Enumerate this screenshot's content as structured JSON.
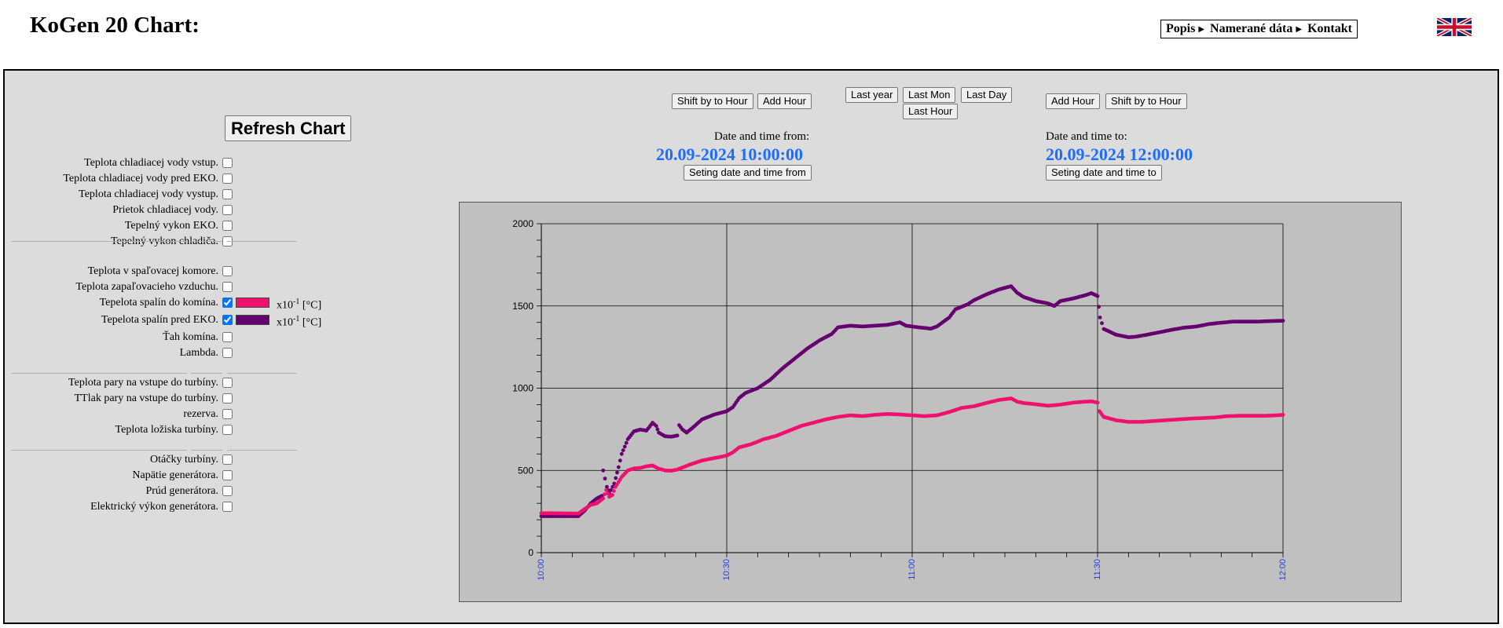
{
  "header": {
    "title": "KoGen 20 Chart:",
    "nav": [
      {
        "label": "Popis"
      },
      {
        "label": "Namerané dáta"
      },
      {
        "label": "Kontakt"
      }
    ],
    "language_flag": "uk-flag-icon"
  },
  "controls": {
    "refresh_label": "Refresh Chart",
    "from": {
      "shift_label": "Shift by to Hour",
      "add_label": "Add Hour",
      "caption": "Date and time from:",
      "value": "20.09-2024 10:00:00",
      "set_label": "Seting date and time from"
    },
    "to": {
      "add_label": "Add Hour",
      "shift_label": "Shift by to Hour",
      "caption": "Date and time to:",
      "value": "20.09-2024 12:00:00",
      "set_label": "Seting date and time to"
    },
    "presets": {
      "last_year": "Last year",
      "last_mon": "Last Mon",
      "last_day": "Last Day",
      "last_hour": "Last Hour"
    }
  },
  "parameters": {
    "group1": [
      {
        "label": "Teplota chladiacej vody vstup.",
        "checked": false
      },
      {
        "label": "Teplota chladiacej vody pred EKO.",
        "checked": false
      },
      {
        "label": "Teplota chladiacej vody vystup.",
        "checked": false
      },
      {
        "label": "Prietok chladiacej vody.",
        "checked": false
      },
      {
        "label": "Tepelný vykon EKO.",
        "checked": false
      },
      {
        "label": "Tepelný vykon chladiča.",
        "checked": false
      }
    ],
    "group2": [
      {
        "label": "Teplota v spaľovacej komore.",
        "checked": false
      },
      {
        "label": "Teplota zapaľovacieho vzduchu.",
        "checked": false
      },
      {
        "label": "Tepelota spalín do komína.",
        "checked": true,
        "color": "#f0106e",
        "unit_base": "x10",
        "unit_exp": "-1",
        "unit_label": "[°C]"
      },
      {
        "label": "Tepelota spalín pred EKO.",
        "checked": true,
        "color": "#65006e",
        "unit_base": "x10",
        "unit_exp": "-1",
        "unit_label": "[°C]"
      },
      {
        "label": "Ťah komína.",
        "checked": false
      },
      {
        "label": "Lambda.",
        "checked": false
      }
    ],
    "group3": [
      {
        "label": "Teplota pary na vstupe do turbíny.",
        "checked": false
      },
      {
        "label": "TTlak pary na vstupe do turbíny.",
        "checked": false
      },
      {
        "label": "rezerva.",
        "checked": false
      },
      {
        "label": "Teplota ložiska turbíny.",
        "checked": false
      }
    ],
    "group4": [
      {
        "label": "Otáčky turbíny.",
        "checked": false
      },
      {
        "label": "Napätie generátora.",
        "checked": false
      },
      {
        "label": "Prúd generátora.",
        "checked": false
      },
      {
        "label": "Elektrický výkon generátora.",
        "checked": false
      }
    ]
  },
  "chart_data": {
    "type": "scatter",
    "ylim": [
      0,
      2000
    ],
    "yticks": [
      0,
      500,
      1000,
      1500,
      2000
    ],
    "xlim": [
      0,
      120
    ],
    "xticks": [
      {
        "x": 0,
        "label": "10:00"
      },
      {
        "x": 30,
        "label": "10:30"
      },
      {
        "x": 60,
        "label": "11:00"
      },
      {
        "x": 90,
        "label": "11:30"
      },
      {
        "x": 120,
        "label": "12:00"
      }
    ],
    "grid": true,
    "series": [
      {
        "color": "#65006e",
        "points": [
          [
            0,
            222
          ],
          [
            6,
            222
          ],
          [
            7,
            255
          ],
          [
            8,
            300
          ],
          [
            9,
            330
          ],
          [
            9.8,
            345
          ],
          [
            10,
            500
          ],
          [
            10.6,
            400
          ],
          [
            11,
            360
          ],
          [
            11.8,
            420
          ],
          [
            12.5,
            520
          ],
          [
            13,
            600
          ],
          [
            14,
            690
          ],
          [
            15,
            738
          ],
          [
            16,
            748
          ],
          [
            17,
            742
          ],
          [
            17.5,
            765
          ],
          [
            18,
            790
          ],
          [
            18.6,
            770
          ],
          [
            19,
            730
          ],
          [
            20,
            708
          ],
          [
            21,
            705
          ],
          [
            22,
            712
          ],
          [
            22.3,
            775
          ],
          [
            22.8,
            750
          ],
          [
            23.5,
            730
          ],
          [
            24.5,
            760
          ],
          [
            26,
            810
          ],
          [
            28,
            840
          ],
          [
            30,
            860
          ],
          [
            31,
            885
          ],
          [
            32,
            940
          ],
          [
            33,
            970
          ],
          [
            35,
            1000
          ],
          [
            37,
            1050
          ],
          [
            39,
            1120
          ],
          [
            41,
            1180
          ],
          [
            43,
            1240
          ],
          [
            45,
            1290
          ],
          [
            47,
            1330
          ],
          [
            48,
            1370
          ],
          [
            50,
            1380
          ],
          [
            52,
            1375
          ],
          [
            54,
            1380
          ],
          [
            56,
            1385
          ],
          [
            58,
            1400
          ],
          [
            59,
            1380
          ],
          [
            61,
            1370
          ],
          [
            63,
            1362
          ],
          [
            64,
            1375
          ],
          [
            66,
            1430
          ],
          [
            67,
            1480
          ],
          [
            69,
            1510
          ],
          [
            70,
            1535
          ],
          [
            72,
            1570
          ],
          [
            74,
            1600
          ],
          [
            75,
            1610
          ],
          [
            76,
            1620
          ],
          [
            77,
            1580
          ],
          [
            78,
            1555
          ],
          [
            80,
            1530
          ],
          [
            82,
            1515
          ],
          [
            83,
            1500
          ],
          [
            84,
            1530
          ],
          [
            86,
            1545
          ],
          [
            88,
            1565
          ],
          [
            89,
            1578
          ],
          [
            90,
            1560
          ],
          [
            90.4,
            1430
          ],
          [
            91,
            1360
          ],
          [
            93,
            1325
          ],
          [
            95,
            1310
          ],
          [
            96,
            1312
          ],
          [
            98,
            1325
          ],
          [
            100,
            1340
          ],
          [
            102,
            1355
          ],
          [
            104,
            1368
          ],
          [
            106,
            1375
          ],
          [
            108,
            1390
          ],
          [
            110,
            1398
          ],
          [
            112,
            1405
          ],
          [
            114,
            1405
          ],
          [
            116,
            1405
          ],
          [
            118,
            1408
          ],
          [
            120,
            1410
          ]
        ]
      },
      {
        "color": "#f0106e",
        "points": [
          [
            0,
            240
          ],
          [
            6,
            238
          ],
          [
            7,
            265
          ],
          [
            8,
            290
          ],
          [
            9,
            300
          ],
          [
            10,
            330
          ],
          [
            10.5,
            380
          ],
          [
            11,
            340
          ],
          [
            11.5,
            350
          ],
          [
            12,
            400
          ],
          [
            13,
            460
          ],
          [
            14,
            500
          ],
          [
            15,
            512
          ],
          [
            16,
            515
          ],
          [
            17,
            525
          ],
          [
            18,
            530
          ],
          [
            19,
            510
          ],
          [
            20,
            500
          ],
          [
            21,
            498
          ],
          [
            22,
            505
          ],
          [
            23,
            520
          ],
          [
            24,
            535
          ],
          [
            26,
            560
          ],
          [
            28,
            575
          ],
          [
            30,
            590
          ],
          [
            31,
            610
          ],
          [
            32,
            640
          ],
          [
            34,
            660
          ],
          [
            36,
            690
          ],
          [
            38,
            710
          ],
          [
            40,
            740
          ],
          [
            42,
            770
          ],
          [
            44,
            790
          ],
          [
            46,
            810
          ],
          [
            48,
            825
          ],
          [
            50,
            835
          ],
          [
            52,
            830
          ],
          [
            54,
            838
          ],
          [
            56,
            843
          ],
          [
            58,
            840
          ],
          [
            60,
            835
          ],
          [
            62,
            830
          ],
          [
            64,
            835
          ],
          [
            66,
            855
          ],
          [
            68,
            880
          ],
          [
            70,
            890
          ],
          [
            72,
            910
          ],
          [
            74,
            928
          ],
          [
            76,
            938
          ],
          [
            77,
            918
          ],
          [
            78,
            910
          ],
          [
            80,
            902
          ],
          [
            82,
            893
          ],
          [
            84,
            900
          ],
          [
            86,
            912
          ],
          [
            88,
            918
          ],
          [
            89,
            920
          ],
          [
            90,
            912
          ],
          [
            90.3,
            860
          ],
          [
            91,
            825
          ],
          [
            93,
            805
          ],
          [
            95,
            795
          ],
          [
            97,
            795
          ],
          [
            99,
            800
          ],
          [
            101,
            805
          ],
          [
            103,
            810
          ],
          [
            105,
            815
          ],
          [
            107,
            818
          ],
          [
            109,
            822
          ],
          [
            111,
            830
          ],
          [
            113,
            832
          ],
          [
            115,
            832
          ],
          [
            117,
            832
          ],
          [
            119,
            835
          ],
          [
            120,
            838
          ]
        ]
      }
    ]
  }
}
